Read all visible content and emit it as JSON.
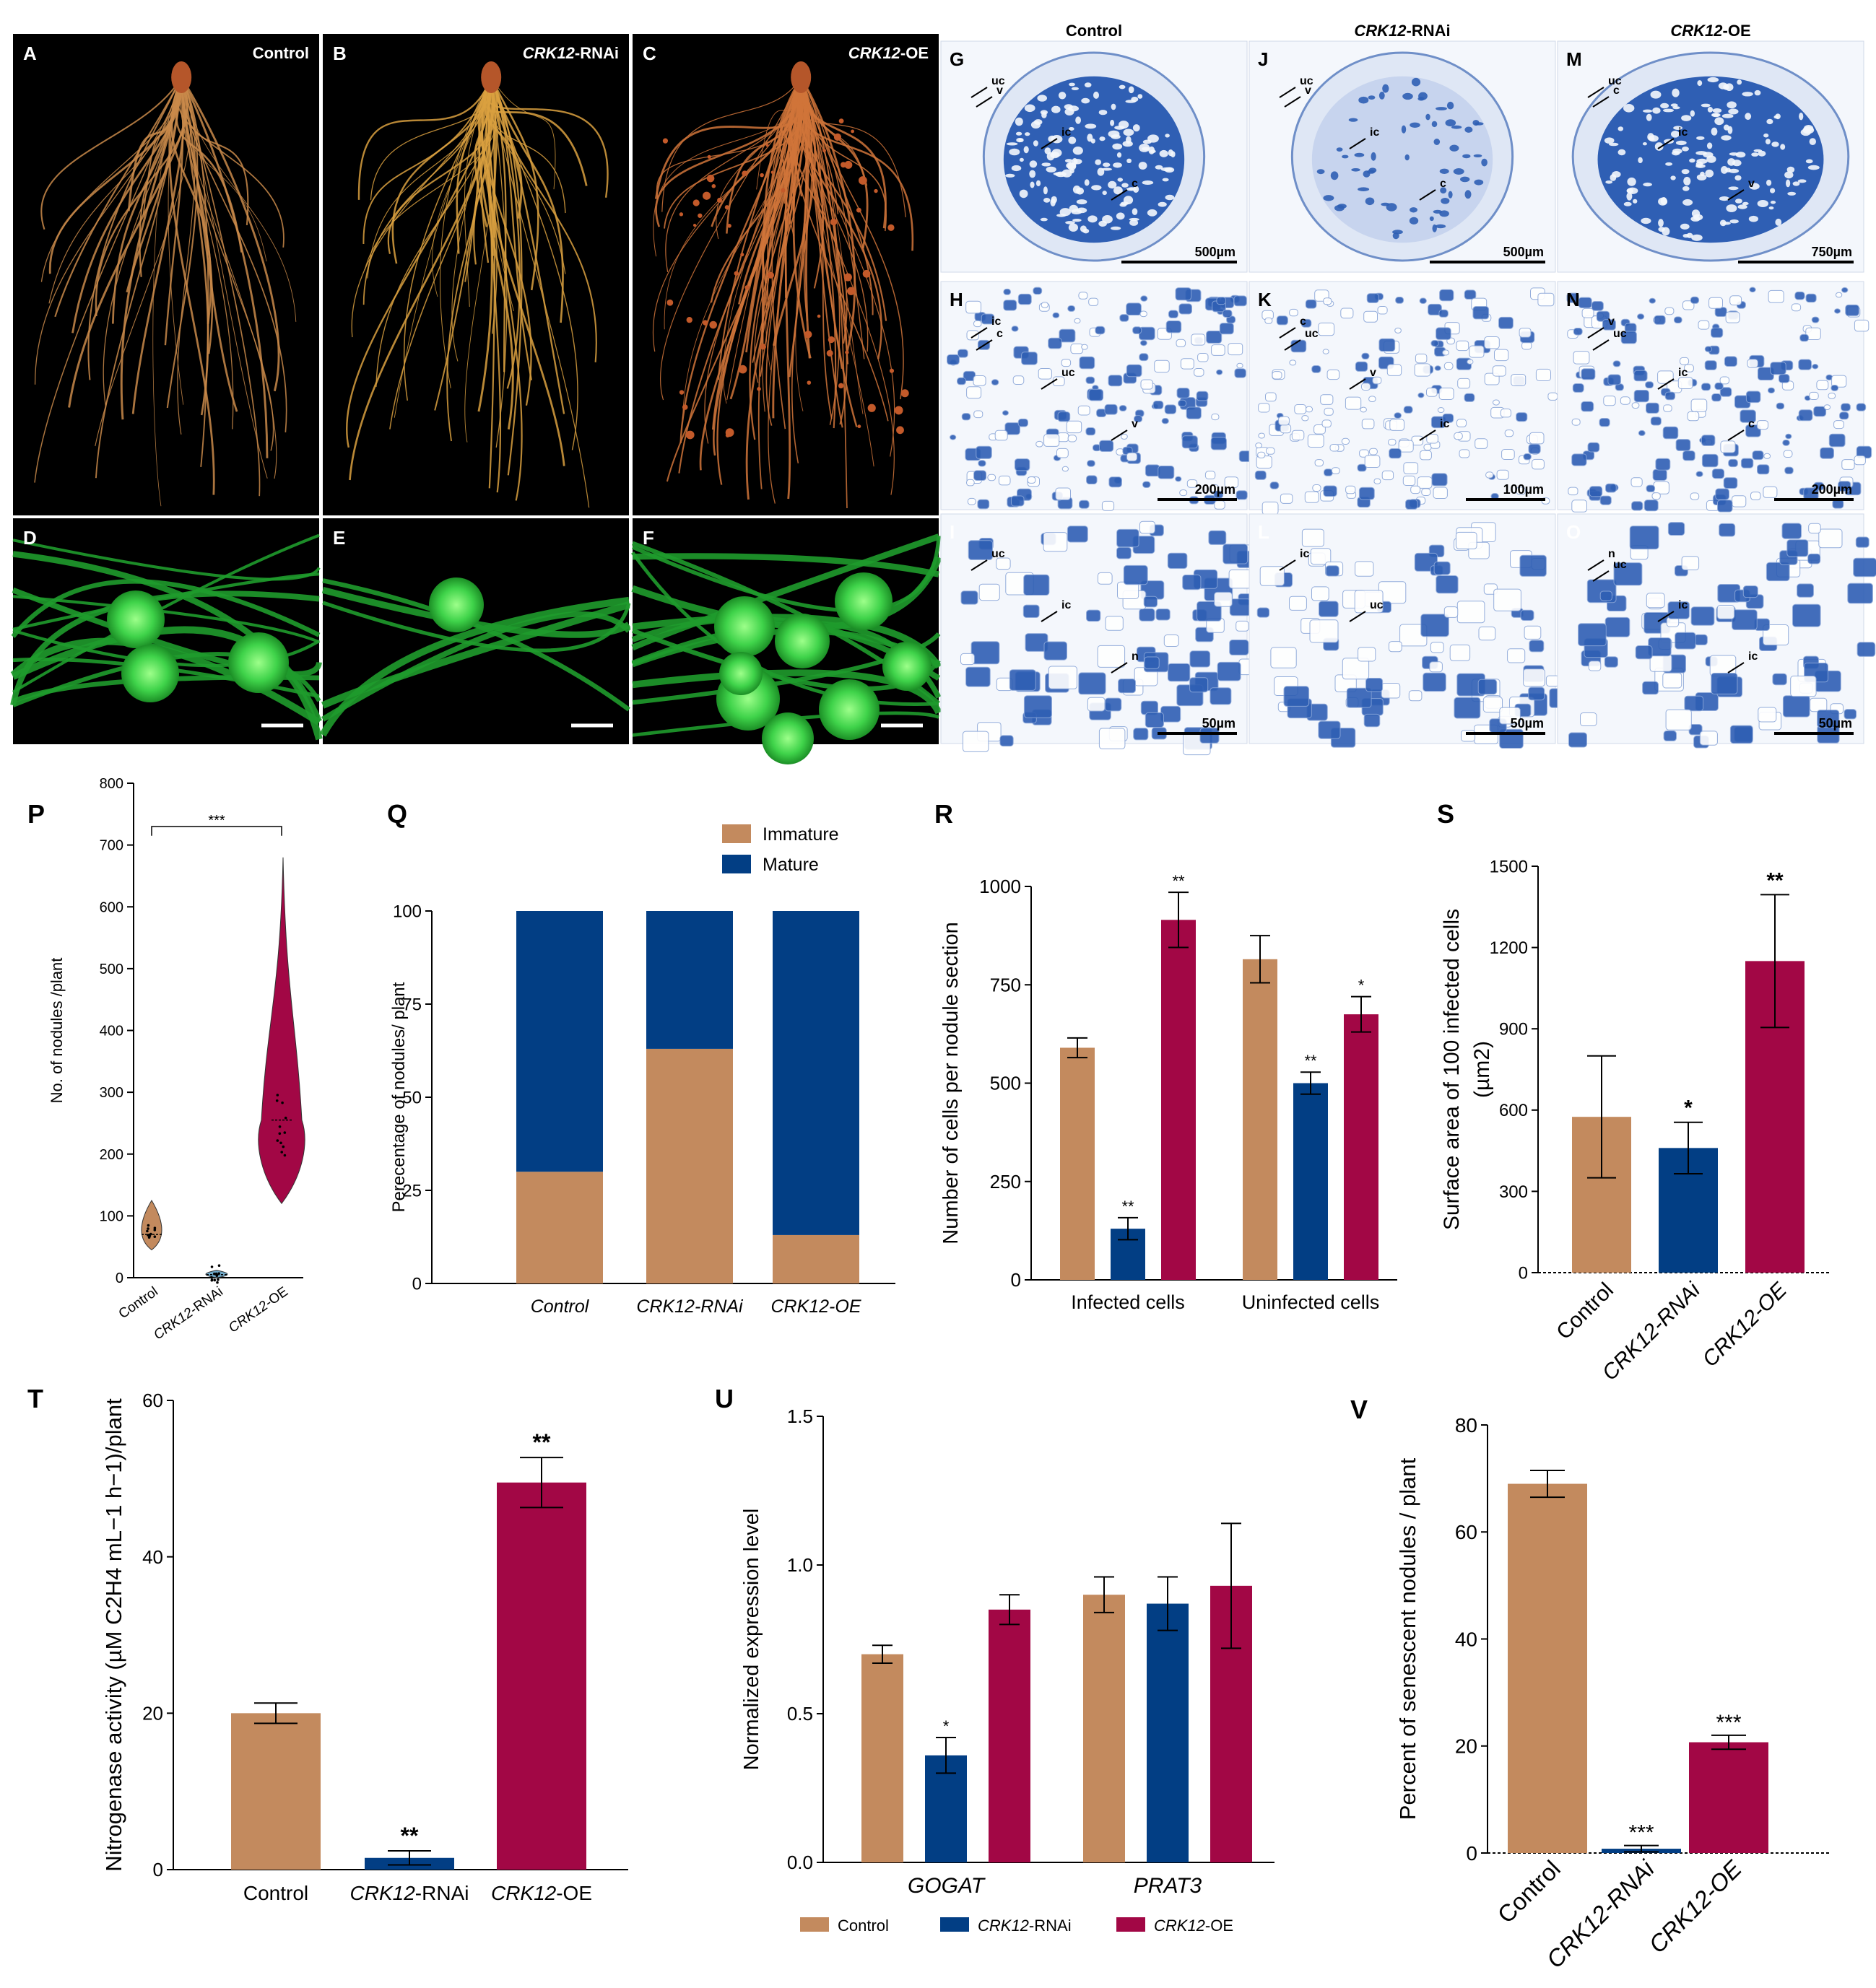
{
  "colors": {
    "control": "#C38A5E",
    "rnai": "#023E84",
    "oe": "#A20745",
    "axis": "#000000",
    "histo_bg": "#e9eff8",
    "histo_cell": "#2f5fb4",
    "photo_bg": "#000000",
    "root": "#c98a4a",
    "gfp": "#22c23a"
  },
  "photos": {
    "A": {
      "letter": "A",
      "label": "Control"
    },
    "B": {
      "letter": "B",
      "label": "CRK12-RNAi"
    },
    "C": {
      "letter": "C",
      "label": "CRK12-OE"
    },
    "D": {
      "letter": "D"
    },
    "E": {
      "letter": "E"
    },
    "F": {
      "letter": "F"
    }
  },
  "histology": {
    "column_titles": [
      "Control",
      "CRK12-RNAi",
      "CRK12-OE"
    ],
    "panels": [
      {
        "letter": "G",
        "scale": "500µm",
        "labels": [
          "uc",
          "ic",
          "c",
          "v"
        ]
      },
      {
        "letter": "J",
        "scale": "500µm",
        "labels": [
          "uc",
          "ic",
          "c",
          "v"
        ]
      },
      {
        "letter": "M",
        "scale": "750µm",
        "labels": [
          "uc",
          "ic",
          "v",
          "c"
        ]
      },
      {
        "letter": "H",
        "scale": "200µm",
        "labels": [
          "ic",
          "uc",
          "v",
          "c"
        ]
      },
      {
        "letter": "K",
        "scale": "100µm",
        "labels": [
          "c",
          "v",
          "ic",
          "uc"
        ]
      },
      {
        "letter": "N",
        "scale": "200µm",
        "labels": [
          "v",
          "ic",
          "c",
          "uc"
        ]
      },
      {
        "letter": "I",
        "scale": "50µm",
        "labels": [
          "uc",
          "ic",
          "n"
        ]
      },
      {
        "letter": "L",
        "scale": "50µm",
        "labels": [
          "ic",
          "uc"
        ]
      },
      {
        "letter": "O",
        "scale": "50µm",
        "labels": [
          "n",
          "ic",
          "ic",
          "uc"
        ]
      }
    ]
  },
  "chart_data": [
    {
      "panel": "P",
      "type": "violin",
      "ylabel": "No. of nodules /plant",
      "ylim": [
        0,
        800
      ],
      "yticks": [
        0,
        100,
        200,
        300,
        400,
        500,
        600,
        700,
        800
      ],
      "categories": [
        "Control",
        "CRK12-RNAi",
        "CRK12-OE"
      ],
      "medians": [
        70,
        5,
        255
      ],
      "ranges": [
        [
          45,
          125
        ],
        [
          0,
          12
        ],
        [
          120,
          680
        ]
      ],
      "significance": [
        {
          "from": 0,
          "to": 2,
          "label": "***"
        }
      ]
    },
    {
      "panel": "Q",
      "type": "bar",
      "stacked": true,
      "ylabel": "Perecentage of nodules/ plant",
      "ylim": [
        0,
        100
      ],
      "yticks": [
        0,
        25,
        50,
        75,
        100
      ],
      "categories": [
        "Control",
        "CRK12-RNAi",
        "CRK12-OE"
      ],
      "series": [
        {
          "name": "Immature",
          "values": [
            30,
            63,
            13
          ]
        },
        {
          "name": "Mature",
          "values": [
            70,
            37,
            87
          ]
        }
      ],
      "legend": "top"
    },
    {
      "panel": "R",
      "type": "bar",
      "ylabel": "Number of cells per nodule section",
      "ylim": [
        0,
        1000
      ],
      "yticks": [
        0,
        250,
        500,
        750,
        1000
      ],
      "categories": [
        "Infected cells",
        "Uninfected cells"
      ],
      "series": [
        {
          "values": [
            590,
            815
          ],
          "errors": [
            25,
            60
          ],
          "sig": [
            "",
            ""
          ]
        },
        {
          "values": [
            130,
            500
          ],
          "errors": [
            28,
            28
          ],
          "sig": [
            "**",
            "**"
          ]
        },
        {
          "values": [
            915,
            675
          ],
          "errors": [
            70,
            45
          ],
          "sig": [
            "**",
            "*"
          ]
        }
      ]
    },
    {
      "panel": "S",
      "type": "bar",
      "ylabel": "Surface area of 100 infected cells",
      "yunit": "(µm2)",
      "ylim": [
        0,
        1500
      ],
      "yticks": [
        0,
        300,
        600,
        900,
        1200,
        1500
      ],
      "categories": [
        "Control",
        "CRK12-RNAi",
        "CRK12-OE"
      ],
      "values": [
        575,
        460,
        1150
      ],
      "errors": [
        225,
        95,
        245
      ],
      "sig": [
        "",
        "*",
        "**"
      ]
    },
    {
      "panel": "T",
      "type": "bar",
      "ylabel": "Nitrogenase activity (µM C2H4 mL−1 h−1)/plant",
      "ylim": [
        0,
        60
      ],
      "yticks": [
        0,
        20,
        40,
        60
      ],
      "categories": [
        "Control",
        "CRK12-RNAi",
        "CRK12-OE"
      ],
      "values": [
        20,
        1.5,
        49.5
      ],
      "errors": [
        1.3,
        0.9,
        3.2
      ],
      "sig": [
        "",
        "**",
        "**"
      ]
    },
    {
      "panel": "U",
      "type": "bar",
      "ylabel": "Normalized expression level",
      "ylim": [
        0,
        1.5
      ],
      "yticks": [
        "0.0",
        "0.5",
        "1.0",
        "1.5"
      ],
      "categories": [
        "GOGAT",
        "PRAT3"
      ],
      "series": [
        {
          "name": "Control",
          "values": [
            0.7,
            0.9
          ],
          "errors": [
            0.03,
            0.06
          ],
          "sig": [
            "",
            ""
          ]
        },
        {
          "name": "CRK12-RNAi",
          "values": [
            0.36,
            0.87
          ],
          "errors": [
            0.06,
            0.09
          ],
          "sig": [
            "*",
            ""
          ]
        },
        {
          "name": "CRK12-OE",
          "values": [
            0.85,
            0.93
          ],
          "errors": [
            0.05,
            0.21
          ],
          "sig": [
            "",
            ""
          ]
        }
      ],
      "legend": "bottom"
    },
    {
      "panel": "V",
      "type": "bar",
      "ylabel": "Percent of senescent nodules / plant",
      "ylim": [
        0,
        80
      ],
      "yticks": [
        0,
        20,
        40,
        60,
        80
      ],
      "categories": [
        "Control",
        "CRK12-RNAi",
        "CRK12-OE"
      ],
      "values": [
        69,
        0.8,
        20.7
      ],
      "errors": [
        2.5,
        0.6,
        1.3
      ],
      "sig": [
        "",
        "***",
        "***"
      ]
    }
  ]
}
